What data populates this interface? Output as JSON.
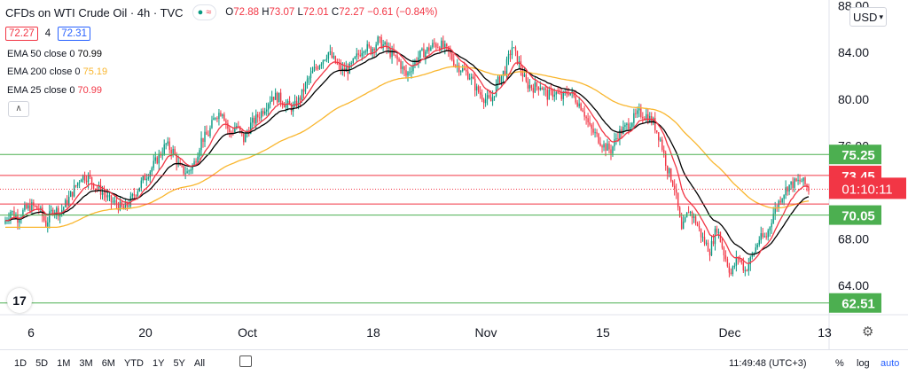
{
  "header": {
    "symbol": "CFDs on WTI Crude Oil · 4h · TVC",
    "open_label": "O",
    "open": "72.88",
    "high_label": "H",
    "high": "73.07",
    "low_label": "L",
    "low": "72.01",
    "close_label": "C",
    "close": "72.27",
    "change": "−0.61 (−0.84%)"
  },
  "bid": "72.27",
  "spread": "4",
  "ask": "72.31",
  "indicators": [
    {
      "label": "EMA 50 close 0",
      "value": "70.99",
      "color": "#000000"
    },
    {
      "label": "EMA 200 close 0",
      "value": "75.19",
      "color": "#f9b62e"
    },
    {
      "label": "EMA 25 close 0",
      "value": "70.99",
      "color": "#f23645"
    }
  ],
  "currency": "USD",
  "logo_text": "17",
  "colors": {
    "up": "#089981",
    "down": "#f23645",
    "green_line": "#4caf50",
    "red_line": "#f23645"
  },
  "bottom": {
    "ranges": [
      "1D",
      "5D",
      "1M",
      "3M",
      "6M",
      "YTD",
      "1Y",
      "5Y",
      "All"
    ],
    "clock": "11:49:48 (UTC+3)",
    "percent": "%",
    "log": "log",
    "auto": "auto"
  },
  "chart_data": {
    "type": "candlestick",
    "timeframe": "4h",
    "ylim": [
      61.5,
      88.5
    ],
    "y_ticks": [
      "88.00",
      "84.00",
      "80.00",
      "76.00",
      "68.00",
      "64.00"
    ],
    "x_ticks": [
      "6",
      "20",
      "Oct",
      "18",
      "Nov",
      "15",
      "Dec",
      "13"
    ],
    "price_path": [
      69.3,
      70.4,
      69.8,
      70.5,
      70.8,
      70.6,
      69.3,
      70.6,
      70.3,
      71.2,
      72.3,
      73.4,
      73.3,
      72.5,
      72.0,
      71.3,
      71.0,
      70.5,
      71.3,
      72.3,
      73.3,
      74.1,
      75.1,
      76.1,
      75.5,
      74.0,
      73.7,
      74.5,
      76.5,
      77.0,
      78.6,
      79.0,
      77.0,
      77.7,
      76.5,
      77.8,
      78.5,
      79.3,
      80.3,
      80.1,
      79.5,
      79.2,
      80.1,
      81.5,
      82.5,
      83.3,
      84.0,
      83.1,
      82.4,
      82.6,
      83.6,
      84.5,
      84.2,
      85.0,
      84.5,
      83.8,
      83.2,
      82.0,
      83.0,
      83.8,
      84.2,
      84.7,
      84.6,
      84.0,
      83.0,
      82.5,
      82.0,
      80.8,
      80.1,
      79.8,
      81.5,
      82.5,
      84.5,
      83.0,
      81.3,
      81.0,
      81.2,
      80.3,
      80.6,
      80.1,
      80.7,
      80.0,
      79.2,
      77.5,
      76.8,
      76.0,
      75.6,
      77.0,
      77.5,
      78.2,
      78.8,
      78.6,
      78.0,
      76.5,
      74.0,
      72.5,
      68.6,
      70.5,
      69.5,
      68.0,
      67.0,
      69.0,
      66.8,
      65.0,
      66.5,
      65.3,
      66.5,
      68.0,
      68.2,
      70.2,
      71.5,
      72.5,
      72.8,
      73.0,
      72.3
    ],
    "series": [
      {
        "name": "EMA 50 close 0",
        "value_at_last": 70.99
      },
      {
        "name": "EMA 200 close 0",
        "value_at_last": 75.19
      },
      {
        "name": "EMA 25 close 0",
        "value_at_last": 70.99
      }
    ],
    "levels": [
      {
        "label": "75.25",
        "value": 75.25,
        "type": "support-resistance",
        "color": "#4caf50"
      },
      {
        "label": "73.45",
        "value": 73.45,
        "type": "support-resistance",
        "color": "#f23645"
      },
      {
        "label": "70.05",
        "value": 70.05,
        "type": "support-resistance",
        "color": "#4caf50"
      },
      {
        "label": "62.51",
        "value": 62.51,
        "type": "support-resistance",
        "color": "#4caf50"
      }
    ],
    "red_line_extra": 71.0,
    "current_price": 72.27,
    "countdown": "01:10:11"
  }
}
